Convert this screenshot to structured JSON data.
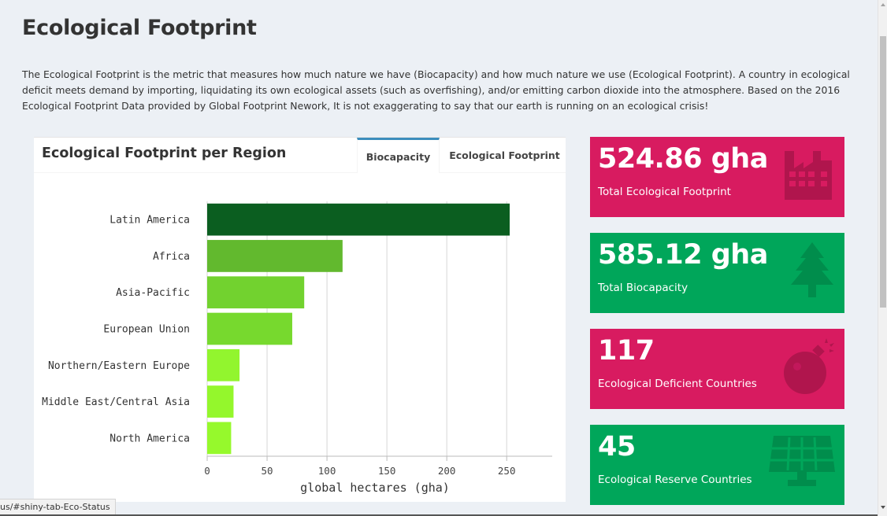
{
  "page": {
    "title": "Ecological Footprint",
    "intro": "The Ecological Footprint is the metric that measures how much nature we have (Biocapacity) and how much nature we use (Ecological Footprint). A country in ecological deficit meets demand by importing, liquidating its own ecological assets (such as overfishing), and/or emitting carbon dioxide into the atmosphere. Based on the 2016 Ecological Footprint Data provided by Global Footprint Nework, It is not exaggerating to say that our earth is running on an ecological crisis!"
  },
  "panel": {
    "title": "Ecological Footprint per Region",
    "tabs": [
      {
        "label": "Biocapacity",
        "active": true
      },
      {
        "label": "Ecological Footprint",
        "active": false
      }
    ]
  },
  "chart_data": {
    "type": "bar",
    "orientation": "horizontal",
    "categories": [
      "Latin America",
      "Africa",
      "Asia-Pacific",
      "European Union",
      "Northern/Eastern Europe",
      "Middle East/Central Asia",
      "North America"
    ],
    "values": [
      252.5,
      113,
      81,
      71,
      27,
      22,
      20
    ],
    "colors": [
      "#0b5e20",
      "#62b92e",
      "#72d22f",
      "#77d92e",
      "#92f52e",
      "#94f72c",
      "#96f92c"
    ],
    "xlabel": "global hectares (gha)",
    "xticks": [
      0,
      50,
      100,
      150,
      200,
      250
    ],
    "xlim": [
      0,
      288
    ],
    "grid": true
  },
  "stats": [
    {
      "value": "524.86 gha",
      "label": "Total Ecological Footprint",
      "color": "#d81b60",
      "icon": "industry-icon"
    },
    {
      "value": "585.12 gha",
      "label": "Total Biocapacity",
      "color": "#00a65a",
      "icon": "tree-icon"
    },
    {
      "value": "117",
      "label": "Ecological Deficient Countries",
      "color": "#d81b60",
      "icon": "bomb-icon"
    },
    {
      "value": "45",
      "label": "Ecological Reserve Countries",
      "color": "#00a65a",
      "icon": "solar-panel-icon"
    }
  ],
  "status_bar": {
    "url": "us/#shiny-tab-Eco-Status"
  }
}
